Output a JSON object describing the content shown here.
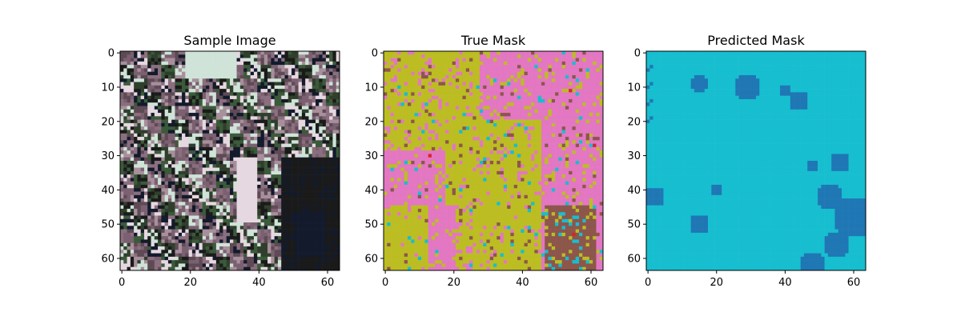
{
  "figure": {
    "panels": [
      {
        "title": "Sample Image",
        "kind": "photo",
        "palette": [
          "#5e4a55",
          "#7a6070",
          "#a78f9b",
          "#cfe3d8",
          "#2f3f2c",
          "#1a1a1a",
          "#3b5a3a",
          "#e6d8e0",
          "#121a2c",
          "#8b6f7e"
        ]
      },
      {
        "title": "True Mask",
        "kind": "mask",
        "palette": [
          "#bcbd22",
          "#e377c2",
          "#8c564b",
          "#17becf",
          "#d62728"
        ]
      },
      {
        "title": "Predicted Mask",
        "kind": "mask",
        "palette": [
          "#17becf",
          "#1f77b4"
        ]
      }
    ]
  },
  "chart_data": [
    {
      "type": "heatmap",
      "title": "Sample Image",
      "xlim": [
        0,
        63
      ],
      "ylim": [
        63,
        0
      ],
      "xticks": [
        0,
        20,
        40,
        60
      ],
      "yticks": [
        0,
        10,
        20,
        30,
        40,
        50,
        60
      ],
      "grid": false
    },
    {
      "type": "heatmap",
      "title": "True Mask",
      "xlim": [
        0,
        63
      ],
      "ylim": [
        63,
        0
      ],
      "xticks": [
        0,
        20,
        40,
        60
      ],
      "yticks": [
        0,
        10,
        20,
        30,
        40,
        50,
        60
      ],
      "classes_colors": [
        "#bcbd22",
        "#e377c2",
        "#8c564b",
        "#17becf",
        "#d62728"
      ],
      "grid": false
    },
    {
      "type": "heatmap",
      "title": "Predicted Mask",
      "xlim": [
        0,
        63
      ],
      "ylim": [
        63,
        0
      ],
      "xticks": [
        0,
        20,
        40,
        60
      ],
      "yticks": [
        0,
        10,
        20,
        30,
        40,
        50,
        60
      ],
      "classes_colors": [
        "#17becf",
        "#1f77b4"
      ],
      "grid": false
    }
  ]
}
